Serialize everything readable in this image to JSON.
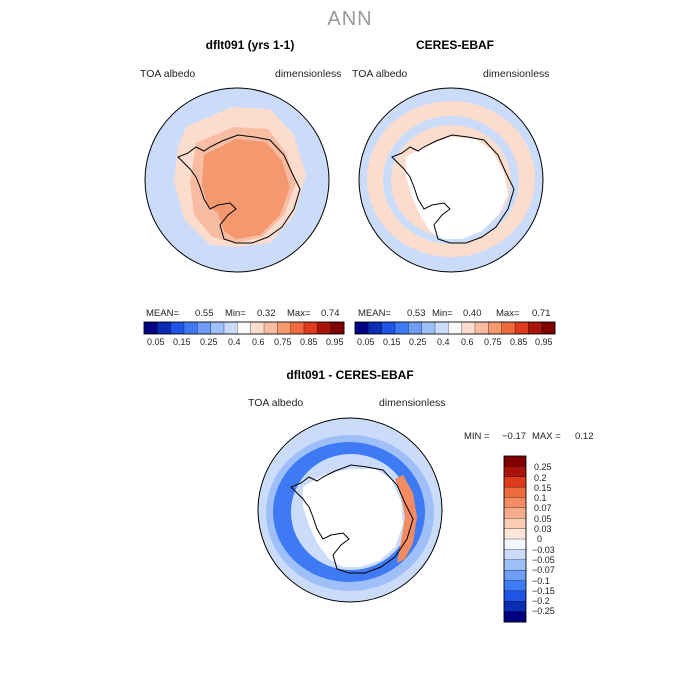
{
  "season": "ANN",
  "colors": {
    "full_scale": [
      "#00007f",
      "#0a2cb5",
      "#1f55e6",
      "#3f7af5",
      "#6e9df6",
      "#9ebff8",
      "#cbdcfa",
      "#fbfbfb",
      "#fcdccd",
      "#f8bca3",
      "#f4996f",
      "#ee6b3f",
      "#dd3b1b",
      "#aa1308",
      "#7f0000"
    ],
    "diff_scale": [
      "#00007f",
      "#0a2cb5",
      "#1f55e6",
      "#3f7af5",
      "#6e9df6",
      "#9ebff8",
      "#cbdcfa",
      "#f2f6fd",
      "#fde6d9",
      "#fbcdb5",
      "#f7ad8c",
      "#f38b63",
      "#ee6b3f",
      "#dd3b1b",
      "#aa1308",
      "#7f0000"
    ],
    "coast": "#000000",
    "frame": "#000000"
  },
  "chart_data": [
    {
      "type": "heatmap",
      "name": "model",
      "title": "dflt091 (yrs 1-1)",
      "left_label": "TOA albedo",
      "right_label": "dimensionless",
      "projection": "south-polar-stereographic",
      "stats": {
        "mean_label": "MEAN=",
        "mean": "0.55",
        "min_label": "Min=",
        "min": "0.32",
        "max_label": "Max=",
        "max": "0.74"
      },
      "colorbar": {
        "orientation": "horizontal",
        "ticks": [
          "0.05",
          "0.15",
          "0.25",
          "0.4",
          "0.6",
          "0.75",
          "0.85",
          "0.95"
        ]
      },
      "fields": {
        "continent": 0.72,
        "shelf": 0.64,
        "sea_ice_zone": 0.6,
        "open_ocean": 0.5
      }
    },
    {
      "type": "heatmap",
      "name": "obs",
      "title": "CERES-EBAF",
      "left_label": "TOA albedo",
      "right_label": "dimensionless",
      "projection": "south-polar-stereographic",
      "stats": {
        "mean_label": "MEAN=",
        "mean": "0.53",
        "min_label": "Min=",
        "min": "0.40",
        "max_label": "Max=",
        "max": "0.71"
      },
      "colorbar": {
        "orientation": "horizontal",
        "ticks": [
          "0.05",
          "0.15",
          "0.25",
          "0.4",
          "0.6",
          "0.75",
          "0.85",
          "0.95"
        ]
      },
      "fields": {
        "continent": "missing",
        "sea_ice_zone": 0.65,
        "open_ocean": 0.5
      }
    },
    {
      "type": "heatmap",
      "name": "difference",
      "title": "dflt091 - CERES-EBAF",
      "left_label": "TOA albedo",
      "right_label": "dimensionless",
      "projection": "south-polar-stereographic",
      "stats": {
        "min_label": "MIN =",
        "min": "−0.17",
        "max_label": "MAX =",
        "max": "0.12"
      },
      "colorbar": {
        "orientation": "vertical",
        "ticks": [
          "0.25",
          "0.2",
          "0.15",
          "0.1",
          "0.07",
          "0.05",
          "0.03",
          "0",
          "−0.03",
          "−0.05",
          "−0.07",
          "−0.1",
          "−0.15",
          "−0.2",
          "−0.25"
        ]
      },
      "fields": {
        "continent": "missing",
        "inner_ring": -0.03,
        "negative_belt": -0.15,
        "outer_ocean": -0.05,
        "east_antarctic_coast": 0.07
      }
    }
  ]
}
